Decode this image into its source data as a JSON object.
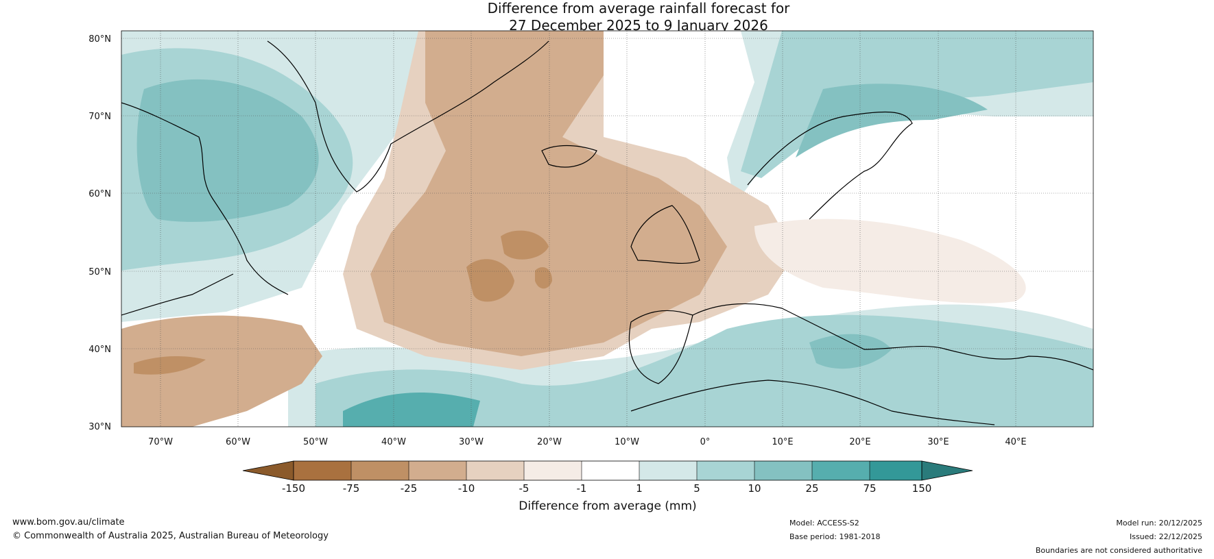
{
  "title": {
    "line1": "Difference from average rainfall forecast for",
    "line2": "27 December 2025 to 9 January 2026"
  },
  "map": {
    "lat_labels": [
      "80°N",
      "70°N",
      "60°N",
      "50°N",
      "40°N",
      "30°N"
    ],
    "lon_labels": [
      "70°W",
      "60°W",
      "50°W",
      "40°W",
      "30°W",
      "20°W",
      "10°W",
      "0°",
      "10°E",
      "20°E",
      "30°E",
      "40°E"
    ],
    "lat_values": [
      80,
      70,
      60,
      50,
      40,
      30
    ],
    "lon_values": [
      -70,
      -60,
      -50,
      -40,
      -30,
      -20,
      -10,
      0,
      10,
      20,
      30,
      40
    ],
    "extent": {
      "lon_min": -75,
      "lon_max": 50,
      "lat_min": 30,
      "lat_max": 81
    }
  },
  "colorbar": {
    "label": "Difference from average (mm)",
    "ticks": [
      "-150",
      "-75",
      "-25",
      "-10",
      "-5",
      "-1",
      "1",
      "5",
      "10",
      "25",
      "75",
      "150"
    ],
    "colors": [
      "#8b5a2b",
      "#a9713f",
      "#bf9065",
      "#d2ad8e",
      "#e6d1c0",
      "#f5ece6",
      "#ffffff",
      "#d4e8e8",
      "#a8d4d4",
      "#84c1c1",
      "#56aeae",
      "#339898",
      "#2a7b7b"
    ]
  },
  "footer": {
    "website": "www.bom.gov.au/climate",
    "copyright": "© Commonwealth of Australia 2025, Australian Bureau of Meteorology",
    "model": "Model: ACCESS-S2",
    "base_period": "Base period: 1981-2018",
    "model_run": "Model run: 20/12/2025",
    "issued": "Issued: 22/12/2025",
    "disclaimer": "Boundaries are not considered authoritative"
  }
}
